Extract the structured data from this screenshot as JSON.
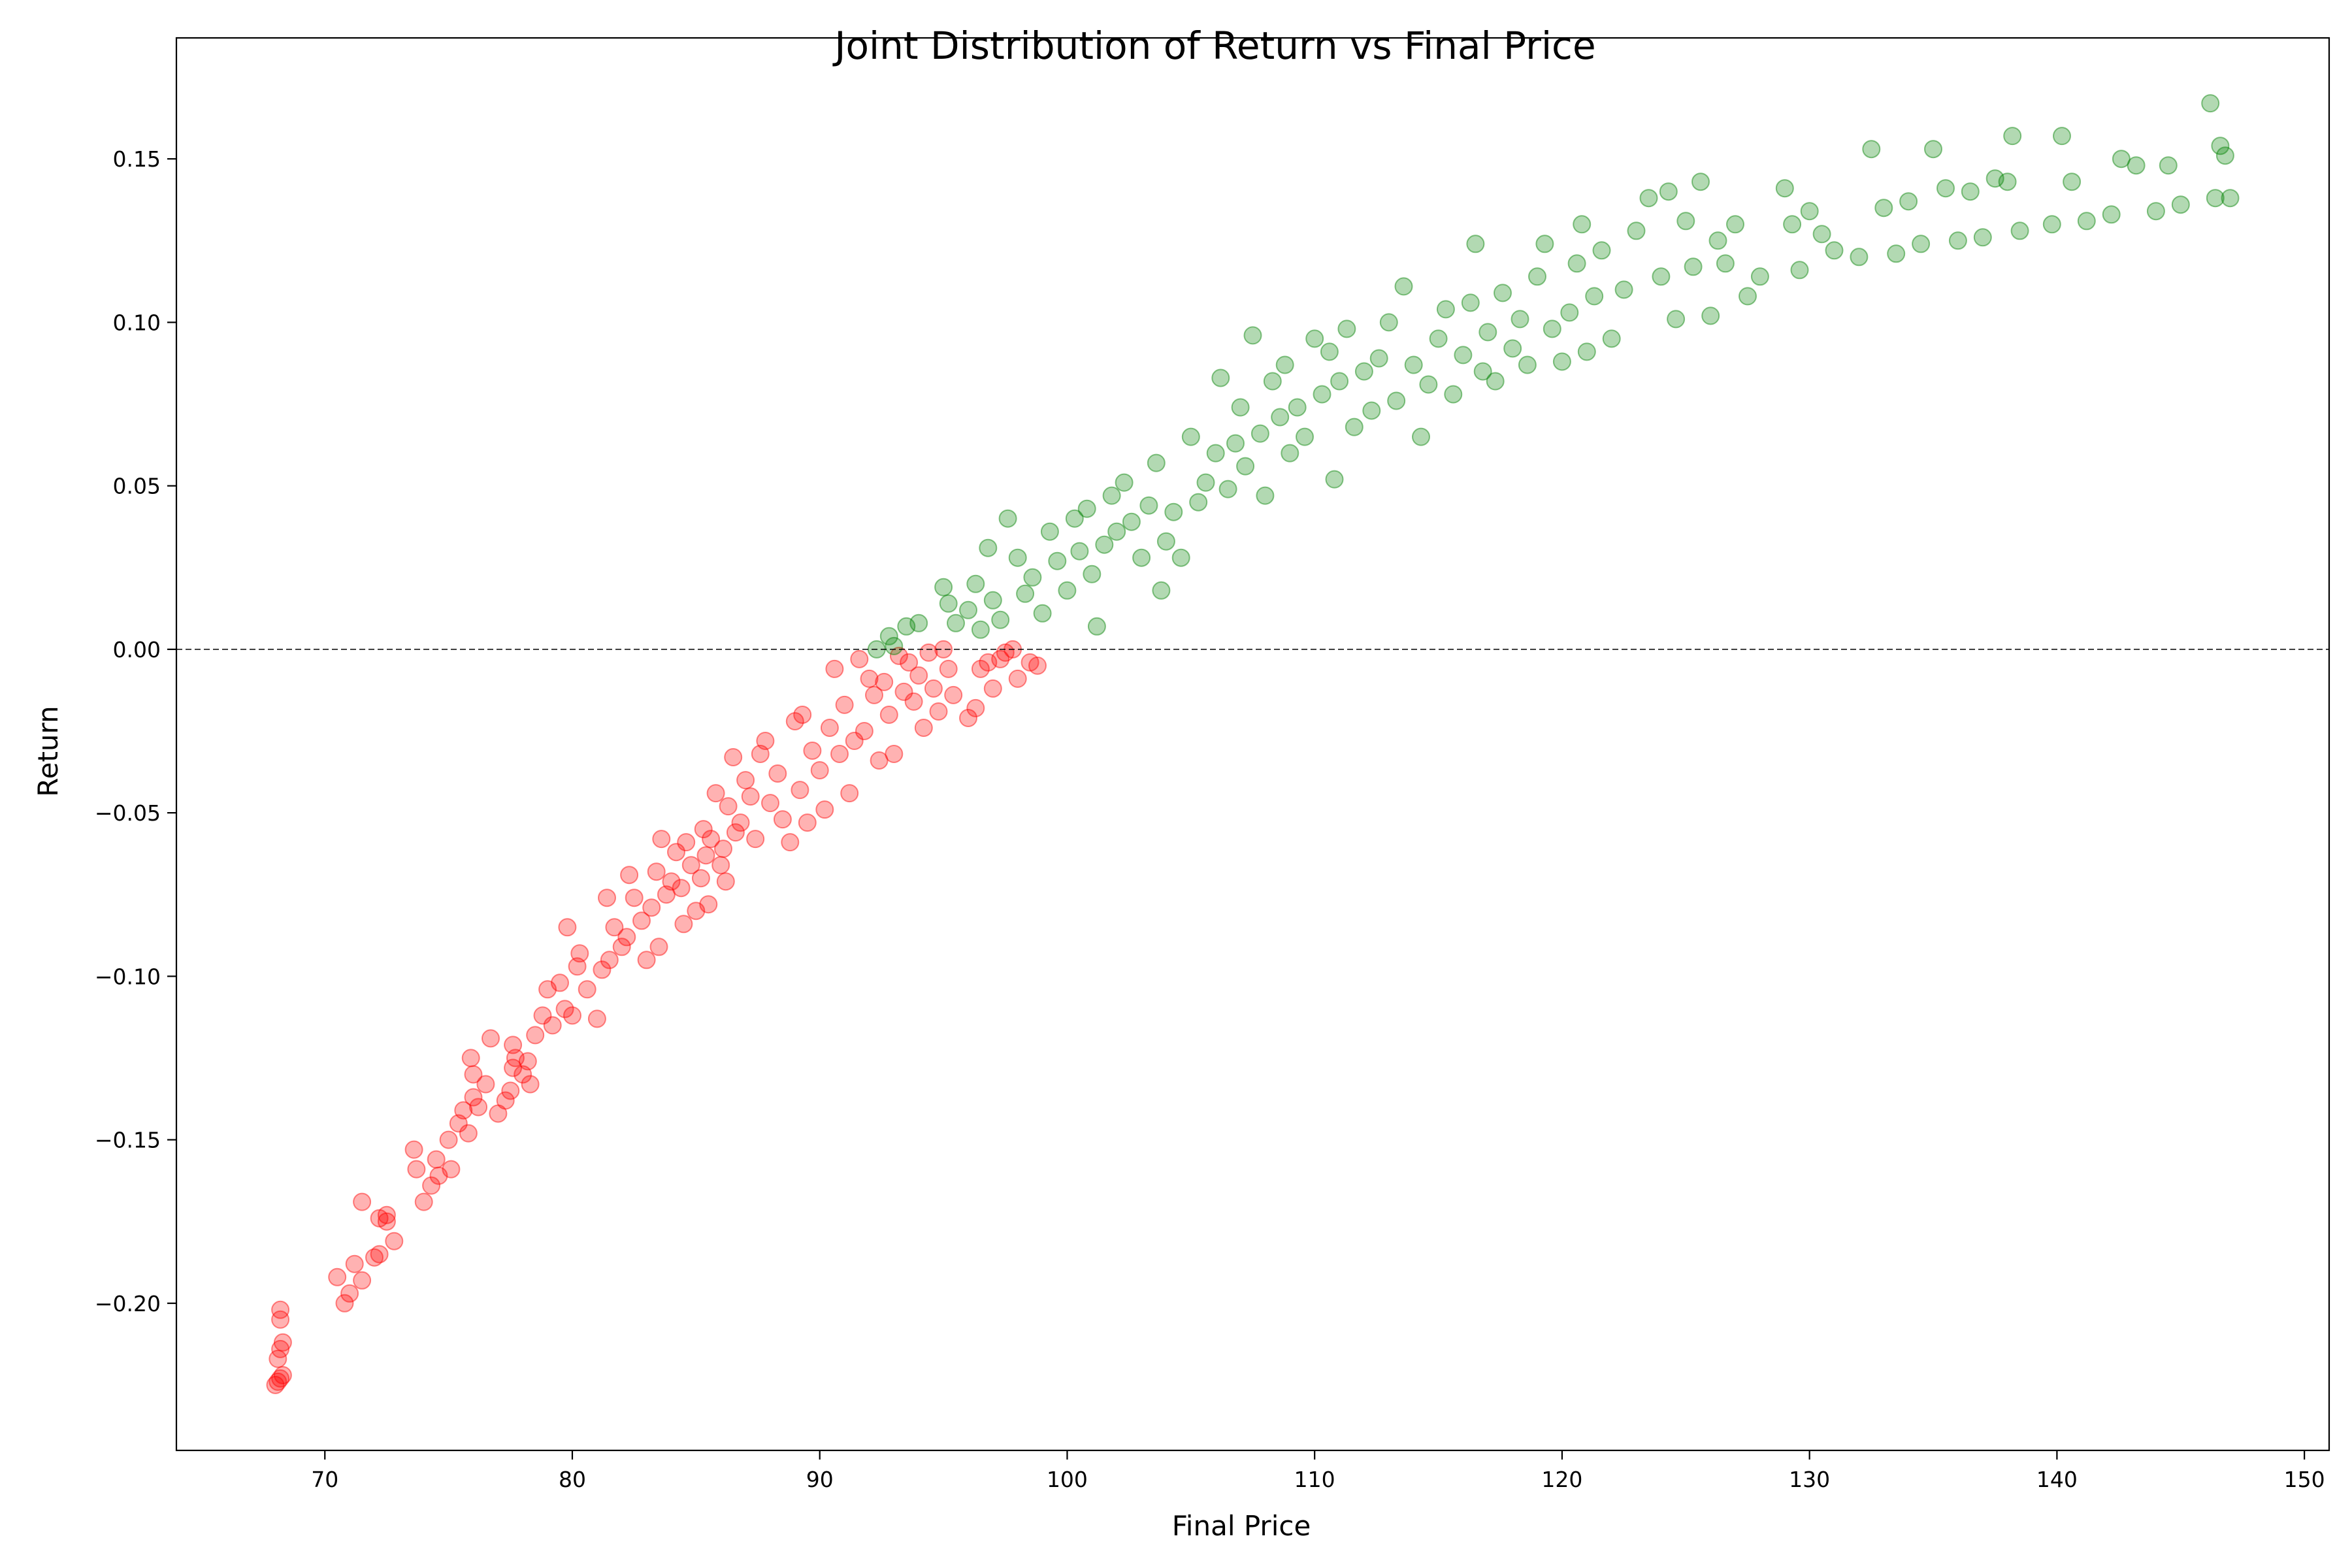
{
  "chart_data": {
    "type": "scatter",
    "title": "Joint Distribution of Return vs Final Price",
    "xlabel": "Final Price",
    "ylabel": "Return",
    "xlim": [
      64,
      151
    ],
    "ylim": [
      -0.245,
      0.187
    ],
    "x_ticks": [
      70,
      80,
      90,
      100,
      110,
      120,
      130,
      140,
      150
    ],
    "y_ticks": [
      -0.2,
      -0.15,
      -0.1,
      -0.05,
      0.0,
      0.05,
      0.1,
      0.15
    ],
    "x_tick_labels": [
      "70",
      "80",
      "90",
      "100",
      "110",
      "120",
      "130",
      "140",
      "150"
    ],
    "y_tick_labels": [
      "−0.20",
      "−0.15",
      "−0.10",
      "−0.05",
      "0.00",
      "0.05",
      "0.10",
      "0.15"
    ],
    "grid": false,
    "reference_line": {
      "y": 0.0,
      "style": "dashed",
      "color": "#000000"
    },
    "colors": {
      "negative": "#ff0000",
      "positive": "#008000"
    },
    "point_alpha": 0.3,
    "series": [
      {
        "color": "#ff0000",
        "points": [
          [
            68.0,
            -0.225
          ],
          [
            68.1,
            -0.224
          ],
          [
            68.2,
            -0.223
          ],
          [
            68.3,
            -0.222
          ],
          [
            68.2,
            -0.214
          ],
          [
            68.3,
            -0.212
          ],
          [
            68.1,
            -0.217
          ],
          [
            68.2,
            -0.205
          ],
          [
            68.2,
            -0.202
          ],
          [
            70.5,
            -0.192
          ],
          [
            70.8,
            -0.2
          ],
          [
            71.0,
            -0.197
          ],
          [
            71.2,
            -0.188
          ],
          [
            71.5,
            -0.193
          ],
          [
            71.5,
            -0.169
          ],
          [
            72.0,
            -0.186
          ],
          [
            72.2,
            -0.185
          ],
          [
            72.2,
            -0.174
          ],
          [
            72.5,
            -0.175
          ],
          [
            72.5,
            -0.173
          ],
          [
            72.8,
            -0.181
          ],
          [
            73.6,
            -0.153
          ],
          [
            73.7,
            -0.159
          ],
          [
            74.0,
            -0.169
          ],
          [
            74.3,
            -0.164
          ],
          [
            74.5,
            -0.156
          ],
          [
            74.6,
            -0.161
          ],
          [
            75.0,
            -0.15
          ],
          [
            75.1,
            -0.159
          ],
          [
            75.4,
            -0.145
          ],
          [
            75.6,
            -0.141
          ],
          [
            75.8,
            -0.148
          ],
          [
            76.0,
            -0.137
          ],
          [
            76.0,
            -0.13
          ],
          [
            75.9,
            -0.125
          ],
          [
            76.2,
            -0.14
          ],
          [
            76.5,
            -0.133
          ],
          [
            76.7,
            -0.119
          ],
          [
            77.0,
            -0.142
          ],
          [
            77.3,
            -0.138
          ],
          [
            77.5,
            -0.135
          ],
          [
            77.6,
            -0.128
          ],
          [
            77.6,
            -0.121
          ],
          [
            77.7,
            -0.125
          ],
          [
            78.0,
            -0.13
          ],
          [
            78.2,
            -0.126
          ],
          [
            78.3,
            -0.133
          ],
          [
            78.5,
            -0.118
          ],
          [
            78.8,
            -0.112
          ],
          [
            79.0,
            -0.104
          ],
          [
            79.2,
            -0.115
          ],
          [
            79.5,
            -0.102
          ],
          [
            79.7,
            -0.11
          ],
          [
            79.8,
            -0.085
          ],
          [
            80.0,
            -0.112
          ],
          [
            80.2,
            -0.097
          ],
          [
            80.3,
            -0.093
          ],
          [
            80.6,
            -0.104
          ],
          [
            81.0,
            -0.113
          ],
          [
            81.2,
            -0.098
          ],
          [
            81.4,
            -0.076
          ],
          [
            81.5,
            -0.095
          ],
          [
            81.7,
            -0.085
          ],
          [
            82.0,
            -0.091
          ],
          [
            82.2,
            -0.088
          ],
          [
            82.3,
            -0.069
          ],
          [
            82.5,
            -0.076
          ],
          [
            82.8,
            -0.083
          ],
          [
            83.0,
            -0.095
          ],
          [
            83.2,
            -0.079
          ],
          [
            83.4,
            -0.068
          ],
          [
            83.5,
            -0.091
          ],
          [
            83.6,
            -0.058
          ],
          [
            83.8,
            -0.075
          ],
          [
            84.0,
            -0.071
          ],
          [
            84.2,
            -0.062
          ],
          [
            84.4,
            -0.073
          ],
          [
            84.5,
            -0.084
          ],
          [
            84.6,
            -0.059
          ],
          [
            84.8,
            -0.066
          ],
          [
            85.0,
            -0.08
          ],
          [
            85.2,
            -0.07
          ],
          [
            85.3,
            -0.055
          ],
          [
            85.4,
            -0.063
          ],
          [
            85.5,
            -0.078
          ],
          [
            85.6,
            -0.058
          ],
          [
            85.8,
            -0.044
          ],
          [
            86.0,
            -0.066
          ],
          [
            86.1,
            -0.061
          ],
          [
            86.2,
            -0.071
          ],
          [
            86.3,
            -0.048
          ],
          [
            86.5,
            -0.033
          ],
          [
            86.6,
            -0.056
          ],
          [
            86.8,
            -0.053
          ],
          [
            87.0,
            -0.04
          ],
          [
            87.2,
            -0.045
          ],
          [
            87.4,
            -0.058
          ],
          [
            87.6,
            -0.032
          ],
          [
            87.8,
            -0.028
          ],
          [
            88.0,
            -0.047
          ],
          [
            88.3,
            -0.038
          ],
          [
            88.5,
            -0.052
          ],
          [
            88.8,
            -0.059
          ],
          [
            89.0,
            -0.022
          ],
          [
            89.2,
            -0.043
          ],
          [
            89.3,
            -0.02
          ],
          [
            89.5,
            -0.053
          ],
          [
            89.7,
            -0.031
          ],
          [
            90.0,
            -0.037
          ],
          [
            90.2,
            -0.049
          ],
          [
            90.4,
            -0.024
          ],
          [
            90.6,
            -0.006
          ],
          [
            90.8,
            -0.032
          ],
          [
            91.0,
            -0.017
          ],
          [
            91.2,
            -0.044
          ],
          [
            91.4,
            -0.028
          ],
          [
            91.6,
            -0.003
          ],
          [
            91.8,
            -0.025
          ],
          [
            92.0,
            -0.009
          ],
          [
            92.2,
            -0.014
          ],
          [
            92.4,
            -0.034
          ],
          [
            92.6,
            -0.01
          ],
          [
            92.8,
            -0.02
          ],
          [
            93.0,
            -0.032
          ],
          [
            93.2,
            -0.002
          ],
          [
            93.4,
            -0.013
          ],
          [
            93.6,
            -0.004
          ],
          [
            93.8,
            -0.016
          ],
          [
            94.0,
            -0.008
          ],
          [
            94.2,
            -0.024
          ],
          [
            94.4,
            -0.001
          ],
          [
            94.6,
            -0.012
          ],
          [
            94.8,
            -0.019
          ],
          [
            95.0,
            0.0
          ],
          [
            95.2,
            -0.006
          ],
          [
            95.4,
            -0.014
          ],
          [
            96.0,
            -0.021
          ],
          [
            96.3,
            -0.018
          ],
          [
            96.5,
            -0.006
          ],
          [
            96.8,
            -0.004
          ],
          [
            97.0,
            -0.012
          ],
          [
            97.3,
            -0.003
          ],
          [
            97.5,
            -0.001
          ],
          [
            97.8,
            0.0
          ],
          [
            98.0,
            -0.009
          ],
          [
            98.5,
            -0.004
          ],
          [
            98.8,
            -0.005
          ]
        ]
      },
      {
        "color": "#008000",
        "points": [
          [
            92.3,
            0.0
          ],
          [
            92.8,
            0.004
          ],
          [
            93.0,
            0.001
          ],
          [
            93.5,
            0.007
          ],
          [
            94.0,
            0.008
          ],
          [
            95.0,
            0.019
          ],
          [
            95.2,
            0.014
          ],
          [
            95.5,
            0.008
          ],
          [
            96.0,
            0.012
          ],
          [
            96.3,
            0.02
          ],
          [
            96.5,
            0.006
          ],
          [
            96.8,
            0.031
          ],
          [
            97.0,
            0.015
          ],
          [
            97.3,
            0.009
          ],
          [
            97.6,
            0.04
          ],
          [
            98.0,
            0.028
          ],
          [
            98.3,
            0.017
          ],
          [
            98.6,
            0.022
          ],
          [
            99.0,
            0.011
          ],
          [
            99.3,
            0.036
          ],
          [
            99.6,
            0.027
          ],
          [
            100.0,
            0.018
          ],
          [
            100.3,
            0.04
          ],
          [
            100.5,
            0.03
          ],
          [
            100.8,
            0.043
          ],
          [
            101.0,
            0.023
          ],
          [
            101.2,
            0.007
          ],
          [
            101.5,
            0.032
          ],
          [
            101.8,
            0.047
          ],
          [
            102.0,
            0.036
          ],
          [
            102.3,
            0.051
          ],
          [
            102.6,
            0.039
          ],
          [
            103.0,
            0.028
          ],
          [
            103.3,
            0.044
          ],
          [
            103.6,
            0.057
          ],
          [
            103.8,
            0.018
          ],
          [
            104.0,
            0.033
          ],
          [
            104.3,
            0.042
          ],
          [
            104.6,
            0.028
          ],
          [
            105.0,
            0.065
          ],
          [
            105.3,
            0.045
          ],
          [
            105.6,
            0.051
          ],
          [
            106.0,
            0.06
          ],
          [
            106.2,
            0.083
          ],
          [
            106.5,
            0.049
          ],
          [
            106.8,
            0.063
          ],
          [
            107.0,
            0.074
          ],
          [
            107.2,
            0.056
          ],
          [
            107.5,
            0.096
          ],
          [
            107.8,
            0.066
          ],
          [
            108.0,
            0.047
          ],
          [
            108.3,
            0.082
          ],
          [
            108.6,
            0.071
          ],
          [
            108.8,
            0.087
          ],
          [
            109.0,
            0.06
          ],
          [
            109.3,
            0.074
          ],
          [
            109.6,
            0.065
          ],
          [
            110.0,
            0.095
          ],
          [
            110.3,
            0.078
          ],
          [
            110.6,
            0.091
          ],
          [
            110.8,
            0.052
          ],
          [
            111.0,
            0.082
          ],
          [
            111.3,
            0.098
          ],
          [
            111.6,
            0.068
          ],
          [
            112.0,
            0.085
          ],
          [
            112.3,
            0.073
          ],
          [
            112.6,
            0.089
          ],
          [
            113.0,
            0.1
          ],
          [
            113.3,
            0.076
          ],
          [
            113.6,
            0.111
          ],
          [
            114.0,
            0.087
          ],
          [
            114.3,
            0.065
          ],
          [
            114.6,
            0.081
          ],
          [
            115.0,
            0.095
          ],
          [
            115.3,
            0.104
          ],
          [
            115.6,
            0.078
          ],
          [
            116.0,
            0.09
          ],
          [
            116.3,
            0.106
          ],
          [
            116.5,
            0.124
          ],
          [
            116.8,
            0.085
          ],
          [
            117.0,
            0.097
          ],
          [
            117.3,
            0.082
          ],
          [
            117.6,
            0.109
          ],
          [
            118.0,
            0.092
          ],
          [
            118.3,
            0.101
          ],
          [
            118.6,
            0.087
          ],
          [
            119.0,
            0.114
          ],
          [
            119.3,
            0.124
          ],
          [
            119.6,
            0.098
          ],
          [
            120.0,
            0.088
          ],
          [
            120.3,
            0.103
          ],
          [
            120.6,
            0.118
          ],
          [
            120.8,
            0.13
          ],
          [
            121.0,
            0.091
          ],
          [
            121.3,
            0.108
          ],
          [
            121.6,
            0.122
          ],
          [
            122.0,
            0.095
          ],
          [
            122.5,
            0.11
          ],
          [
            123.0,
            0.128
          ],
          [
            123.5,
            0.138
          ],
          [
            124.0,
            0.114
          ],
          [
            124.3,
            0.14
          ],
          [
            124.6,
            0.101
          ],
          [
            125.0,
            0.131
          ],
          [
            125.3,
            0.117
          ],
          [
            125.6,
            0.143
          ],
          [
            126.0,
            0.102
          ],
          [
            126.3,
            0.125
          ],
          [
            126.6,
            0.118
          ],
          [
            127.0,
            0.13
          ],
          [
            127.5,
            0.108
          ],
          [
            128.0,
            0.114
          ],
          [
            129.0,
            0.141
          ],
          [
            129.3,
            0.13
          ],
          [
            129.6,
            0.116
          ],
          [
            130.0,
            0.134
          ],
          [
            130.5,
            0.127
          ],
          [
            131.0,
            0.122
          ],
          [
            132.0,
            0.12
          ],
          [
            132.5,
            0.153
          ],
          [
            133.0,
            0.135
          ],
          [
            133.5,
            0.121
          ],
          [
            134.0,
            0.137
          ],
          [
            134.5,
            0.124
          ],
          [
            135.0,
            0.153
          ],
          [
            135.5,
            0.141
          ],
          [
            136.0,
            0.125
          ],
          [
            136.5,
            0.14
          ],
          [
            137.0,
            0.126
          ],
          [
            137.5,
            0.144
          ],
          [
            138.0,
            0.143
          ],
          [
            138.2,
            0.157
          ],
          [
            138.5,
            0.128
          ],
          [
            139.8,
            0.13
          ],
          [
            140.2,
            0.157
          ],
          [
            140.6,
            0.143
          ],
          [
            141.2,
            0.131
          ],
          [
            142.2,
            0.133
          ],
          [
            142.6,
            0.15
          ],
          [
            143.2,
            0.148
          ],
          [
            144.0,
            0.134
          ],
          [
            144.5,
            0.148
          ],
          [
            145.0,
            0.136
          ],
          [
            146.2,
            0.167
          ],
          [
            146.4,
            0.138
          ],
          [
            146.6,
            0.154
          ],
          [
            146.8,
            0.151
          ],
          [
            147.0,
            0.138
          ]
        ]
      }
    ]
  }
}
